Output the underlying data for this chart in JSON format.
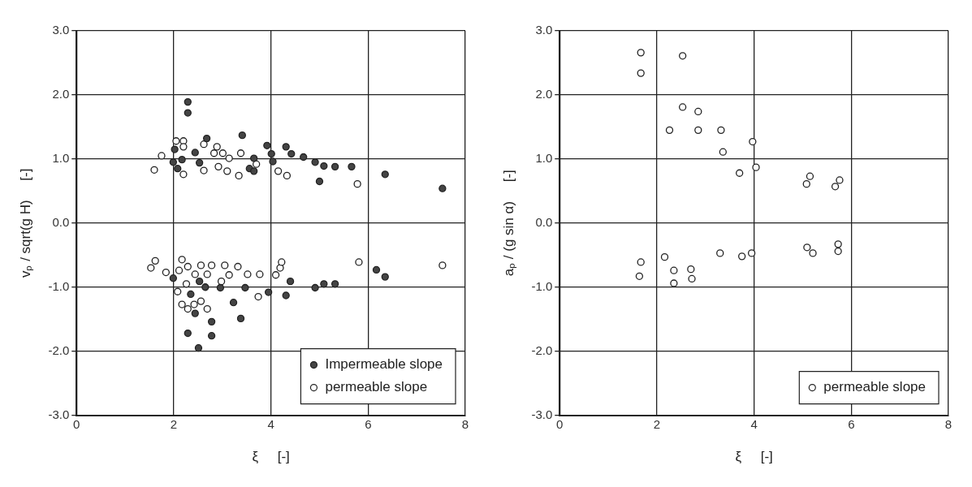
{
  "chart_data": [
    {
      "type": "scatter",
      "xlabel": "ξ     [-]",
      "ylabel": "vₚ / sqrt(g H)     [-]",
      "xlim": [
        0,
        8
      ],
      "xticks": [
        0,
        2,
        4,
        6,
        8
      ],
      "ylim": [
        -3,
        3
      ],
      "yticks": [
        {
          "value": -3,
          "label": "-3.0"
        },
        {
          "value": -2,
          "label": "-2.0"
        },
        {
          "value": -1,
          "label": "-1.0"
        },
        {
          "value": 0,
          "label": "0.0"
        },
        {
          "value": 1,
          "label": "1.0"
        },
        {
          "value": 2,
          "label": "2.0"
        },
        {
          "value": 3,
          "label": "3.0"
        }
      ],
      "grid": true,
      "legend": "bottom right",
      "marker": "circle",
      "series": [
        {
          "name": "Impermeable slope",
          "color": "#444444",
          "x": [
            3.41,
            2.29,
            2.29,
            2.68,
            2.44,
            2.02,
            1.99,
            2.17,
            2.08,
            2.53,
            3.65,
            3.56,
            3.65,
            3.92,
            4.01,
            4.04,
            4.31,
            4.42,
            4.67,
            4.91,
            5.09,
            5.32,
            5.66,
            5.0,
            6.35,
            7.53,
            1.99,
            2.53,
            2.65,
            2.96,
            3.47,
            3.95,
            4.31,
            4.4,
            4.91,
            5.09,
            5.32,
            6.17,
            6.35,
            2.35,
            2.44,
            3.23,
            3.38,
            2.78,
            2.29,
            2.78,
            2.51
          ],
          "values": [
            1.37,
            1.89,
            1.72,
            1.32,
            1.1,
            1.15,
            0.95,
            0.99,
            0.85,
            0.94,
            1.01,
            0.85,
            0.81,
            1.21,
            1.08,
            0.96,
            1.19,
            1.08,
            1.03,
            0.95,
            0.89,
            0.88,
            0.88,
            0.65,
            0.76,
            0.54,
            -0.86,
            -0.91,
            -1.0,
            -1.01,
            -1.01,
            -1.08,
            -1.13,
            -0.91,
            -1.01,
            -0.95,
            -0.95,
            -0.73,
            -0.84,
            -1.11,
            -1.41,
            -1.24,
            -1.49,
            -1.54,
            -1.72,
            -1.76,
            -1.95
          ]
        },
        {
          "name": "permeable slope",
          "color": "#ffffff",
          "x": [
            1.6,
            1.75,
            2.05,
            2.2,
            2.2,
            2.2,
            2.62,
            2.62,
            2.83,
            2.89,
            2.92,
            3.01,
            3.1,
            3.14,
            3.38,
            3.34,
            3.7,
            4.15,
            4.33,
            5.78,
            1.53,
            1.62,
            1.84,
            2.17,
            2.11,
            2.29,
            2.56,
            2.78,
            3.05,
            3.32,
            2.44,
            2.69,
            2.98,
            3.14,
            3.52,
            3.77,
            4.1,
            4.19,
            4.22,
            2.08,
            2.26,
            2.17,
            2.29,
            2.42,
            2.56,
            2.69,
            3.74,
            5.81,
            7.53
          ],
          "values": [
            0.83,
            1.05,
            1.28,
            1.28,
            1.19,
            0.76,
            1.23,
            0.82,
            1.09,
            1.19,
            0.88,
            1.09,
            0.81,
            1.01,
            1.09,
            0.74,
            0.92,
            0.81,
            0.74,
            0.61,
            -0.7,
            -0.59,
            -0.77,
            -0.57,
            -0.74,
            -0.68,
            -0.66,
            -0.66,
            -0.66,
            -0.68,
            -0.8,
            -0.8,
            -0.91,
            -0.81,
            -0.8,
            -0.8,
            -0.81,
            -0.7,
            -0.61,
            -1.07,
            -0.95,
            -1.27,
            -1.34,
            -1.27,
            -1.22,
            -1.34,
            -1.15,
            -0.61,
            -0.66
          ]
        }
      ]
    },
    {
      "type": "scatter",
      "xlabel": "ξ     [-]",
      "ylabel": "aₚ / (g sin α)     [-]",
      "xlim": [
        0,
        8
      ],
      "xticks": [
        0,
        2,
        4,
        6,
        8
      ],
      "ylim": [
        -3,
        3
      ],
      "yticks": [
        {
          "value": -3,
          "label": "-3.0"
        },
        {
          "value": -2,
          "label": "-2.0"
        },
        {
          "value": -1,
          "label": "-1.0"
        },
        {
          "value": 0,
          "label": "0.0"
        },
        {
          "value": 1,
          "label": "1.0"
        },
        {
          "value": 2,
          "label": "2.0"
        },
        {
          "value": 3,
          "label": "3.0"
        }
      ],
      "grid": true,
      "legend": "bottom right",
      "marker": "circle",
      "series": [
        {
          "name": "permeable slope",
          "color": "#ffffff",
          "x": [
            1.67,
            1.67,
            2.53,
            2.53,
            2.85,
            2.26,
            2.85,
            3.32,
            3.36,
            3.97,
            4.04,
            3.7,
            5.15,
            5.08,
            5.76,
            5.67,
            1.67,
            1.64,
            2.16,
            2.35,
            2.35,
            2.7,
            2.72,
            3.3,
            3.75,
            3.95,
            5.09,
            5.21,
            5.73,
            5.73
          ],
          "values": [
            2.66,
            2.34,
            2.61,
            1.81,
            1.74,
            1.45,
            1.45,
            1.45,
            1.11,
            1.27,
            0.87,
            0.78,
            0.73,
            0.61,
            0.67,
            0.57,
            -0.61,
            -0.83,
            -0.53,
            -0.74,
            -0.94,
            -0.72,
            -0.87,
            -0.47,
            -0.52,
            -0.47,
            -0.38,
            -0.47,
            -0.33,
            -0.44
          ]
        }
      ]
    }
  ]
}
